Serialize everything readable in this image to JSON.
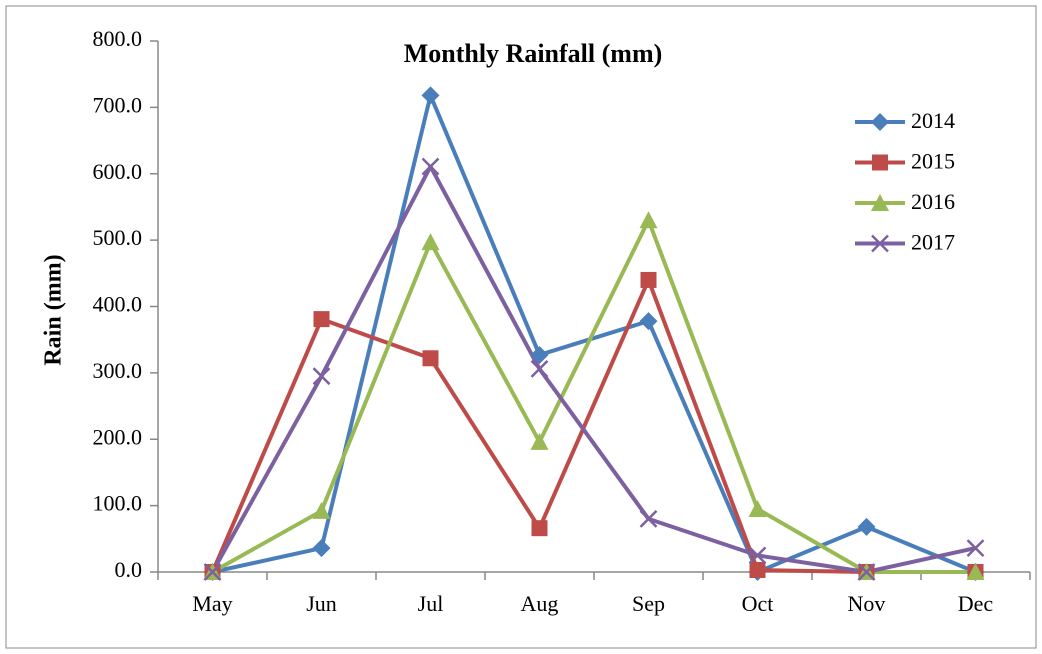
{
  "chart_data": {
    "type": "line",
    "title": "Monthly Rainfall (mm)",
    "y_label": "Rain (mm)",
    "categories": [
      "May",
      "Jun",
      "Jul",
      "Aug",
      "Sep",
      "Oct",
      "Nov",
      "Dec"
    ],
    "series": [
      {
        "name": "2014",
        "color": "#4a7ebb",
        "marker": "diamond",
        "values": [
          0,
          36,
          718,
          327,
          378,
          0,
          68,
          0
        ]
      },
      {
        "name": "2015",
        "color": "#be4b48",
        "marker": "square",
        "values": [
          0,
          381,
          322,
          66,
          440,
          3,
          0,
          0
        ]
      },
      {
        "name": "2016",
        "color": "#98b954",
        "marker": "triangle",
        "values": [
          0,
          92,
          497,
          196,
          530,
          95,
          0,
          0
        ]
      },
      {
        "name": "2017",
        "color": "#7d60a0",
        "marker": "x",
        "values": [
          0,
          295,
          611,
          306,
          80,
          25,
          0,
          36
        ]
      }
    ],
    "ylim": [
      0,
      800
    ],
    "yticks": [
      {
        "value": 0,
        "label": "0.0"
      },
      {
        "value": 100,
        "label": "100.0"
      },
      {
        "value": 200,
        "label": "200.0"
      },
      {
        "value": 300,
        "label": "300.0"
      },
      {
        "value": 400,
        "label": "400.0"
      },
      {
        "value": 500,
        "label": "500.0"
      },
      {
        "value": 600,
        "label": "600.0"
      },
      {
        "value": 700,
        "label": "700.0"
      },
      {
        "value": 800,
        "label": "800.0"
      }
    ],
    "legend": "top-right"
  }
}
